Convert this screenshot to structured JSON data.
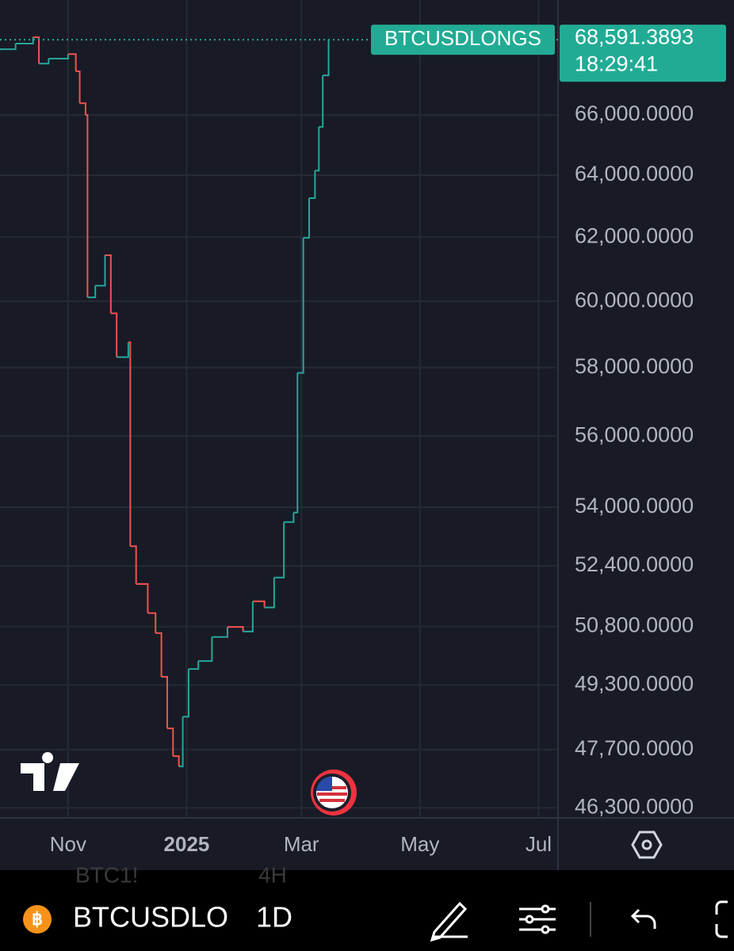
{
  "chart_data": {
    "type": "line",
    "series_name": "BTCUSDLONGS",
    "last_label": "68,591.3893",
    "last_time": "18:29:41",
    "up_color": "#26a69a",
    "down_color": "#ef5350",
    "x": [
      0,
      8,
      17,
      20,
      25,
      35,
      39,
      41,
      44,
      45,
      49,
      54,
      57,
      60,
      66,
      67,
      70,
      76,
      80,
      83,
      86,
      89,
      92,
      94,
      97,
      102,
      109,
      117,
      125,
      130,
      136,
      141,
      146,
      151,
      153,
      156,
      159,
      162,
      164,
      166,
      169
    ],
    "values": [
      68260,
      68455,
      68680,
      67760,
      67930,
      68090,
      67490,
      66400,
      66000,
      60120,
      60480,
      61430,
      59630,
      58310,
      58750,
      52930,
      51920,
      51150,
      50630,
      49510,
      48220,
      47540,
      47290,
      48510,
      49710,
      49910,
      50530,
      50790,
      50670,
      51460,
      51300,
      52090,
      53590,
      53850,
      57840,
      61980,
      63250,
      64150,
      65600,
      67350,
      68591.3893
    ],
    "xlim": [
      0,
      287
    ],
    "xticks": [
      {
        "value": 35,
        "label": "Nov"
      },
      {
        "value": 96,
        "label": "2025"
      },
      {
        "value": 155,
        "label": "Mar"
      },
      {
        "value": 216,
        "label": "May"
      },
      {
        "value": 277,
        "label": "Jul"
      }
    ],
    "ylim": [
      46100,
      70000
    ],
    "log_scale": true,
    "grid": true,
    "yticks": [
      {
        "value": 66000,
        "label": "66,000.0000"
      },
      {
        "value": 64000,
        "label": "64,000.0000"
      },
      {
        "value": 62000,
        "label": "62,000.0000"
      },
      {
        "value": 60000,
        "label": "60,000.0000"
      },
      {
        "value": 58000,
        "label": "58,000.0000"
      },
      {
        "value": 56000,
        "label": "56,000.0000"
      },
      {
        "value": 54000,
        "label": "54,000.0000"
      },
      {
        "value": 52400,
        "label": "52,400.0000"
      },
      {
        "value": 50800,
        "label": "50,800.0000"
      },
      {
        "value": 49300,
        "label": "49,300.0000"
      },
      {
        "value": 47700,
        "label": "47,700.0000"
      },
      {
        "value": 46300,
        "label": "46,300.0000"
      }
    ]
  },
  "toolbar": {
    "symbol": "BTCUSDLONGS",
    "interval": "1D",
    "ghost_symbol": "BTC1!",
    "ghost_interval": "4H"
  }
}
